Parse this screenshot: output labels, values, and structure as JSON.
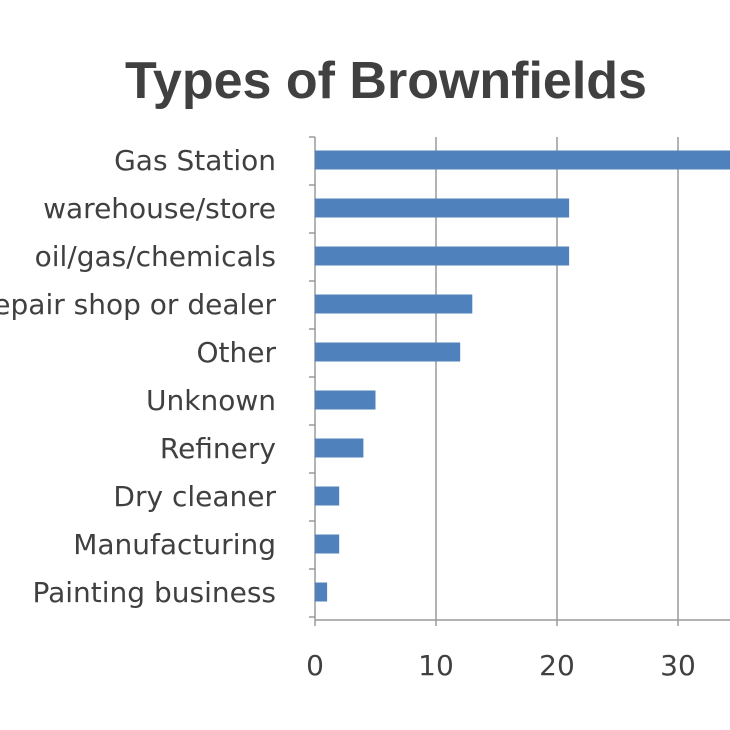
{
  "chart_data": {
    "type": "bar",
    "orientation": "horizontal",
    "title": "Types of Brownfields",
    "xlabel": "",
    "ylabel": "",
    "categories": [
      "Gas Station",
      "warehouse/store",
      "oil/gas/chemicals",
      "Auto repair shop or dealer",
      "Other",
      "Unknown",
      "Refinery",
      "Dry cleaner",
      "Manufacturing",
      "Painting business"
    ],
    "values": [
      36,
      21,
      21,
      13,
      12,
      5,
      4,
      2,
      2,
      1
    ],
    "xlim": [
      0,
      40
    ],
    "xticks": [
      0,
      10,
      20,
      30
    ],
    "grid": true,
    "bar_color": "#4f81bd"
  }
}
